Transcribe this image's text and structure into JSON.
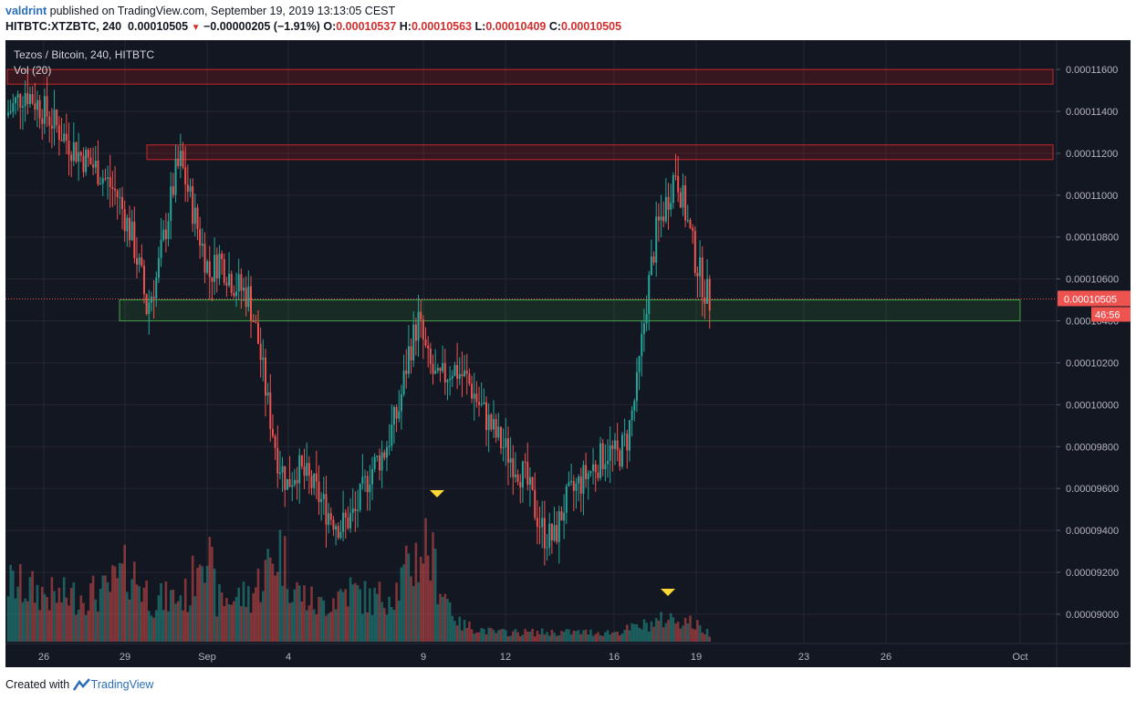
{
  "header": {
    "author": "valdrint",
    "published_text": "published on TradingView.com, September 19, 2019 13:13:05 CEST",
    "symbol": "HITBTC:XTZBTC, 240",
    "last": "0.00010505",
    "change": "−0.00000205 (−1.91%)",
    "open_label": "O:",
    "open": "0.00010537",
    "high_label": "H:",
    "high": "0.00010563",
    "low_label": "L:",
    "low": "0.00010409",
    "close_label": "C:",
    "close": "0.00010505"
  },
  "footer": {
    "created_with": "Created with",
    "brand": "TradingView"
  },
  "chart_data": {
    "type": "candlestick",
    "title": "Tezos / Bitcoin, 240, HITBTC",
    "indicator": "Vol (20)",
    "y_ticks": [
      "0.00011600",
      "0.00011400",
      "0.00011200",
      "0.00011000",
      "0.00010800",
      "0.00010600",
      "0.00010400",
      "0.00010200",
      "0.00010000",
      "0.00009800",
      "0.00009600",
      "0.00009400",
      "0.00009200",
      "0.00009000"
    ],
    "x_ticks": [
      "26",
      "29",
      "Sep",
      "4",
      "9",
      "12",
      "16",
      "19",
      "23",
      "26",
      "Oct"
    ],
    "ylim": [
      8.86e-05,
      0.0001174
    ],
    "last_price_label": "0.00010505",
    "countdown_label": "46:56",
    "zones": [
      {
        "kind": "resistance",
        "from": 0.0001153,
        "to": 0.000116,
        "color": "#b71c1c"
      },
      {
        "kind": "resistance",
        "from": 0.0001117,
        "to": 0.0001124,
        "color": "#b71c1c"
      },
      {
        "kind": "support",
        "from": 0.000104,
        "to": 0.000105,
        "color": "#2e7d32"
      }
    ],
    "price_path": [
      [
        0,
        0.0001138
      ],
      [
        8,
        0.000115
      ],
      [
        16,
        0.000114
      ],
      [
        24,
        0.0001128
      ],
      [
        30,
        0.000112
      ],
      [
        38,
        0.0001112
      ],
      [
        46,
        0.00011
      ],
      [
        52,
        0.000108
      ],
      [
        56,
        0.000106
      ],
      [
        58,
        0.0001046
      ],
      [
        62,
        0.000106
      ],
      [
        66,
        0.0001085
      ],
      [
        70,
        0.000111
      ],
      [
        72,
        0.0001116
      ],
      [
        76,
        0.0001098
      ],
      [
        80,
        0.000108
      ],
      [
        84,
        0.0001062
      ],
      [
        88,
        0.000107
      ],
      [
        94,
        0.0001058
      ],
      [
        100,
        0.0001052
      ],
      [
        104,
        0.000103
      ],
      [
        108,
        0.0001
      ],
      [
        112,
        9.75e-05
      ],
      [
        116,
        9.62e-05
      ],
      [
        120,
        9.7e-05
      ],
      [
        126,
        9.62e-05
      ],
      [
        132,
        9.5e-05
      ],
      [
        138,
        9.42e-05
      ],
      [
        144,
        9.48e-05
      ],
      [
        150,
        9.68e-05
      ],
      [
        156,
        9.78e-05
      ],
      [
        162,
        9.98e-05
      ],
      [
        166,
        0.0001025
      ],
      [
        170,
        0.000104
      ],
      [
        174,
        0.000102
      ],
      [
        178,
        0.000101
      ],
      [
        184,
        0.0001018
      ],
      [
        190,
        0.0001012
      ],
      [
        196,
        9.98e-05
      ],
      [
        202,
        9.85e-05
      ],
      [
        208,
        9.75e-05
      ],
      [
        214,
        9.65e-05
      ],
      [
        218,
        9.5e-05
      ],
      [
        222,
        9.38e-05
      ],
      [
        226,
        9.36e-05
      ],
      [
        230,
        9.52e-05
      ],
      [
        236,
        9.62e-05
      ],
      [
        242,
        9.7e-05
      ],
      [
        248,
        9.78e-05
      ],
      [
        252,
        9.75e-05
      ],
      [
        256,
        9.84e-05
      ],
      [
        260,
        0.0001008
      ],
      [
        264,
        0.000105
      ],
      [
        268,
        0.0001082
      ],
      [
        272,
        0.0001096
      ],
      [
        276,
        0.0001112
      ],
      [
        280,
        0.0001092
      ],
      [
        284,
        0.000107
      ],
      [
        288,
        0.0001055
      ],
      [
        290,
        0.000105
      ]
    ],
    "volume_path": [
      [
        0,
        0.5
      ],
      [
        20,
        0.38
      ],
      [
        40,
        0.42
      ],
      [
        50,
        0.62
      ],
      [
        60,
        0.35
      ],
      [
        75,
        0.4
      ],
      [
        80,
        1.0
      ],
      [
        86,
        0.35
      ],
      [
        100,
        0.4
      ],
      [
        112,
        0.8
      ],
      [
        118,
        0.45
      ],
      [
        128,
        0.3
      ],
      [
        140,
        0.45
      ],
      [
        150,
        0.35
      ],
      [
        160,
        0.45
      ],
      [
        172,
        0.85
      ],
      [
        178,
        0.5
      ],
      [
        186,
        0.15
      ],
      [
        200,
        0.08
      ],
      [
        230,
        0.08
      ],
      [
        250,
        0.08
      ],
      [
        266,
        0.16
      ],
      [
        272,
        0.2
      ],
      [
        280,
        0.18
      ],
      [
        290,
        0.06
      ]
    ]
  }
}
